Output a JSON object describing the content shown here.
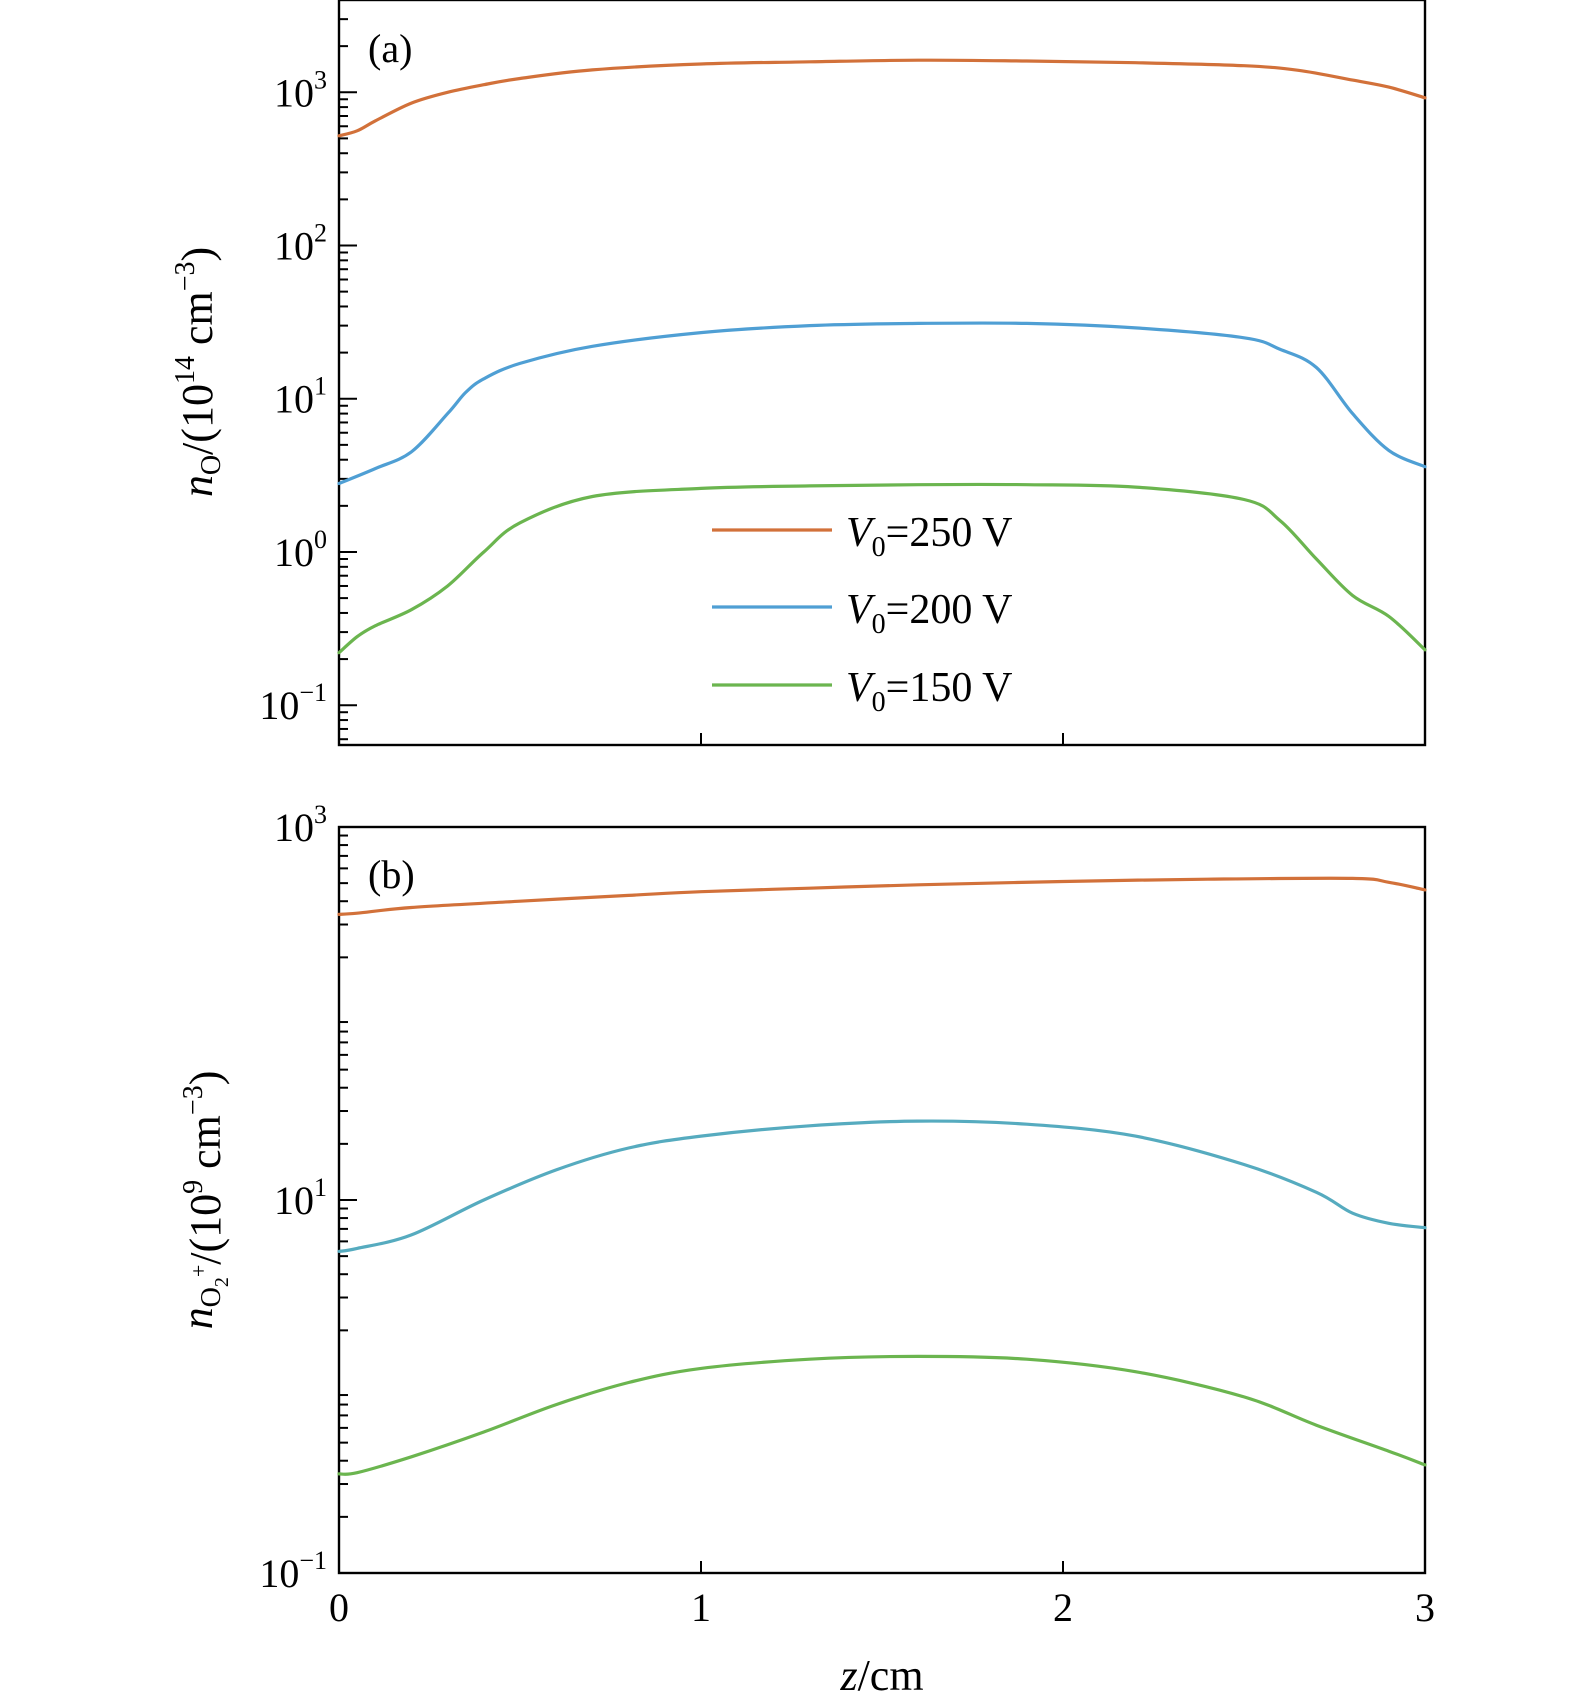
{
  "chart_data": [
    {
      "panel_label": "(a)",
      "type": "line",
      "yscale": "log",
      "xlim": [
        0,
        3
      ],
      "ylim": [
        0.055,
        4000
      ],
      "y_major_ticks": [
        {
          "value": 0.1,
          "base": "10",
          "exp": "−1"
        },
        {
          "value": 1,
          "base": "10",
          "exp": "0"
        },
        {
          "value": 10,
          "base": "10",
          "exp": "1"
        },
        {
          "value": 100,
          "base": "10",
          "exp": "2"
        },
        {
          "value": 1000,
          "base": "10",
          "exp": "3"
        }
      ],
      "ylabel": {
        "var": "n",
        "sub": "O",
        "open": "/(10",
        "exp": "14",
        "close": " cm",
        "unit_exp": "−3",
        "end": ")"
      },
      "legend": {
        "position": "center",
        "prefix": "V",
        "sub": "0"
      },
      "series": [
        {
          "name": "=250 V",
          "color": "#d2713a",
          "x": [
            0,
            0.05,
            0.1,
            0.2,
            0.3,
            0.4,
            0.5,
            0.7,
            1.0,
            1.3,
            1.6,
            1.9,
            2.2,
            2.5,
            2.65,
            2.8,
            2.9,
            3.0
          ],
          "y": [
            520,
            560,
            650,
            850,
            1000,
            1120,
            1230,
            1400,
            1530,
            1580,
            1620,
            1600,
            1560,
            1490,
            1390,
            1200,
            1080,
            920
          ]
        },
        {
          "name": "=200 V",
          "color": "#4f9fd4",
          "x": [
            0,
            0.1,
            0.2,
            0.3,
            0.35,
            0.4,
            0.5,
            0.7,
            1.0,
            1.3,
            1.6,
            1.9,
            2.2,
            2.5,
            2.6,
            2.7,
            2.8,
            2.9,
            3.0
          ],
          "y": [
            2.8,
            3.5,
            4.5,
            8,
            11,
            13.5,
            17,
            22,
            27,
            30,
            31,
            31,
            29,
            25,
            21,
            16,
            8,
            4.6,
            3.6
          ]
        },
        {
          "name": "=150 V",
          "color": "#6bb54f",
          "x": [
            0,
            0.05,
            0.1,
            0.2,
            0.3,
            0.4,
            0.5,
            0.7,
            1.0,
            1.3,
            1.6,
            1.9,
            2.2,
            2.5,
            2.6,
            2.7,
            2.8,
            2.9,
            3.0
          ],
          "y": [
            0.22,
            0.28,
            0.33,
            0.42,
            0.6,
            1.0,
            1.55,
            2.3,
            2.6,
            2.7,
            2.75,
            2.75,
            2.65,
            2.2,
            1.6,
            0.9,
            0.52,
            0.38,
            0.23
          ]
        }
      ]
    },
    {
      "panel_label": "(b)",
      "type": "line",
      "yscale": "log",
      "xlim": [
        0,
        3
      ],
      "ylim": [
        0.1,
        1000
      ],
      "x_ticks": [
        0,
        1,
        2,
        3
      ],
      "xlabel": {
        "var": "z",
        "unit": "/cm"
      },
      "y_major_ticks": [
        {
          "value": 0.1,
          "base": "10",
          "exp": "−1"
        },
        {
          "value": 10,
          "base": "10",
          "exp": "1"
        },
        {
          "value": 1000,
          "base": "10",
          "exp": "3"
        }
      ],
      "ylabel": {
        "var": "n",
        "sub": "O",
        "sub2": "2",
        "sup": "+",
        "open": "/(10",
        "exp": "9",
        "close": " cm",
        "unit_exp": "−3",
        "end": ")"
      },
      "series": [
        {
          "name": "=250 V",
          "color": "#d2713a",
          "x": [
            0,
            0.05,
            0.2,
            0.5,
            0.8,
            1.0,
            1.3,
            1.6,
            2.0,
            2.4,
            2.8,
            2.9,
            3.0
          ],
          "y": [
            340,
            345,
            370,
            400,
            430,
            450,
            470,
            490,
            510,
            525,
            530,
            505,
            460
          ]
        },
        {
          "name": "=200 V",
          "color": "#56abbf",
          "x": [
            0,
            0.05,
            0.2,
            0.4,
            0.6,
            0.8,
            1.0,
            1.3,
            1.6,
            1.9,
            2.2,
            2.5,
            2.7,
            2.8,
            2.9,
            3.0
          ],
          "y": [
            5.3,
            5.5,
            6.5,
            10,
            14.5,
            19,
            22,
            25,
            26.5,
            25.5,
            22,
            15.5,
            11,
            8.5,
            7.5,
            7.1
          ]
        },
        {
          "name": "=150 V",
          "color": "#6bb54f",
          "x": [
            0,
            0.05,
            0.2,
            0.4,
            0.6,
            0.8,
            1.0,
            1.3,
            1.6,
            1.9,
            2.2,
            2.5,
            2.7,
            2.9,
            3.0
          ],
          "y": [
            0.34,
            0.345,
            0.42,
            0.57,
            0.8,
            1.05,
            1.25,
            1.4,
            1.45,
            1.4,
            1.2,
            0.88,
            0.62,
            0.45,
            0.38
          ]
        }
      ]
    }
  ]
}
